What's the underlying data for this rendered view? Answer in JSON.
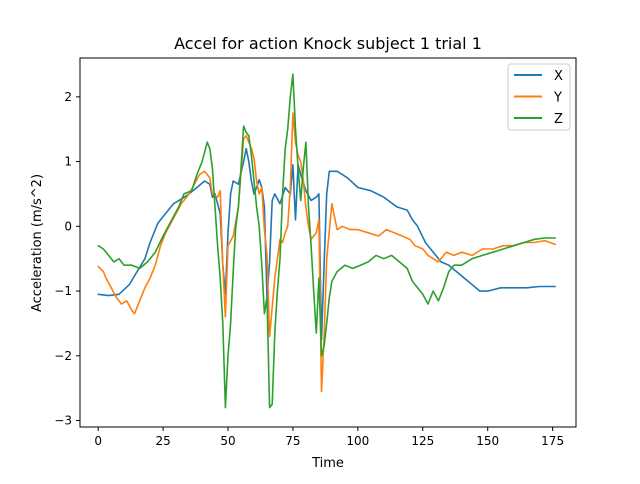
{
  "chart_data": {
    "type": "line",
    "title": "Accel for action Knock subject 1 trial 1",
    "xlabel": "Time",
    "ylabel": "Acceleration (m/s^2)",
    "xlim": [
      -7,
      184
    ],
    "ylim": [
      -3.1,
      2.6
    ],
    "xticks": [
      0,
      25,
      50,
      75,
      100,
      125,
      150,
      175
    ],
    "yticks": [
      -3,
      -2,
      -1,
      0,
      1,
      2
    ],
    "grid": false,
    "legend_position": "upper right",
    "series": [
      {
        "name": "X",
        "color": "#1f77b4",
        "points": [
          [
            0,
            -1.05
          ],
          [
            4,
            -1.07
          ],
          [
            8,
            -1.05
          ],
          [
            12,
            -0.9
          ],
          [
            15,
            -0.7
          ],
          [
            18,
            -0.5
          ],
          [
            20,
            -0.25
          ],
          [
            23,
            0.05
          ],
          [
            26,
            0.2
          ],
          [
            29,
            0.35
          ],
          [
            32,
            0.42
          ],
          [
            35,
            0.5
          ],
          [
            38,
            0.6
          ],
          [
            41,
            0.7
          ],
          [
            43,
            0.65
          ],
          [
            44,
            0.45
          ],
          [
            45,
            0.5
          ],
          [
            46,
            0.35
          ],
          [
            47,
            0.2
          ],
          [
            48,
            -0.6
          ],
          [
            49,
            -1.05
          ],
          [
            50,
            -0.1
          ],
          [
            51,
            0.5
          ],
          [
            52,
            0.7
          ],
          [
            54,
            0.65
          ],
          [
            56,
            1.0
          ],
          [
            57,
            1.2
          ],
          [
            58,
            1.0
          ],
          [
            59,
            0.7
          ],
          [
            60,
            0.5
          ],
          [
            61,
            0.6
          ],
          [
            62,
            0.72
          ],
          [
            63,
            0.6
          ],
          [
            64,
            0.3
          ],
          [
            65,
            -1.1
          ],
          [
            66,
            -0.55
          ],
          [
            67,
            0.4
          ],
          [
            68,
            0.5
          ],
          [
            70,
            0.35
          ],
          [
            72,
            0.6
          ],
          [
            73,
            0.55
          ],
          [
            74,
            0.5
          ],
          [
            75,
            0.95
          ],
          [
            76,
            0.1
          ],
          [
            77,
            0.95
          ],
          [
            78,
            0.8
          ],
          [
            80,
            0.55
          ],
          [
            82,
            0.4
          ],
          [
            84,
            0.45
          ],
          [
            85,
            0.5
          ],
          [
            86,
            -1.75
          ],
          [
            87,
            -0.6
          ],
          [
            88,
            0.5
          ],
          [
            89,
            0.85
          ],
          [
            92,
            0.85
          ],
          [
            96,
            0.75
          ],
          [
            100,
            0.6
          ],
          [
            105,
            0.55
          ],
          [
            110,
            0.45
          ],
          [
            115,
            0.3
          ],
          [
            119,
            0.25
          ],
          [
            121,
            0.1
          ],
          [
            123,
            0.0
          ],
          [
            126,
            -0.25
          ],
          [
            128,
            -0.35
          ],
          [
            130,
            -0.45
          ],
          [
            132,
            -0.55
          ],
          [
            135,
            -0.6
          ],
          [
            138,
            -0.7
          ],
          [
            141,
            -0.8
          ],
          [
            144,
            -0.9
          ],
          [
            147,
            -1.0
          ],
          [
            150,
            -1.0
          ],
          [
            155,
            -0.95
          ],
          [
            160,
            -0.95
          ],
          [
            165,
            -0.95
          ],
          [
            170,
            -0.93
          ],
          [
            176,
            -0.93
          ]
        ]
      },
      {
        "name": "Y",
        "color": "#ff7f0e",
        "points": [
          [
            0,
            -0.62
          ],
          [
            2,
            -0.7
          ],
          [
            3,
            -0.8
          ],
          [
            5,
            -0.95
          ],
          [
            7,
            -1.1
          ],
          [
            9,
            -1.2
          ],
          [
            11,
            -1.15
          ],
          [
            13,
            -1.3
          ],
          [
            14,
            -1.35
          ],
          [
            16,
            -1.15
          ],
          [
            18,
            -0.95
          ],
          [
            20,
            -0.8
          ],
          [
            22,
            -0.6
          ],
          [
            24,
            -0.3
          ],
          [
            26,
            -0.1
          ],
          [
            28,
            0.05
          ],
          [
            30,
            0.2
          ],
          [
            32,
            0.35
          ],
          [
            35,
            0.5
          ],
          [
            37,
            0.65
          ],
          [
            39,
            0.8
          ],
          [
            41,
            0.85
          ],
          [
            43,
            0.75
          ],
          [
            44,
            0.5
          ],
          [
            46,
            0.45
          ],
          [
            47,
            0.55
          ],
          [
            48,
            -0.6
          ],
          [
            49,
            -1.4
          ],
          [
            50,
            -0.3
          ],
          [
            52,
            -0.15
          ],
          [
            54,
            0.3
          ],
          [
            56,
            1.35
          ],
          [
            57,
            1.4
          ],
          [
            59,
            1.2
          ],
          [
            60,
            1.05
          ],
          [
            61,
            0.7
          ],
          [
            62,
            0.5
          ],
          [
            63,
            0.6
          ],
          [
            64,
            -0.05
          ],
          [
            65,
            -0.45
          ],
          [
            66,
            -1.7
          ],
          [
            67,
            -1.25
          ],
          [
            68,
            -0.8
          ],
          [
            69,
            -0.5
          ],
          [
            70,
            -0.2
          ],
          [
            71,
            -0.25
          ],
          [
            72,
            -0.1
          ],
          [
            73,
            0.0
          ],
          [
            74,
            0.6
          ],
          [
            75,
            1.75
          ],
          [
            76,
            1.3
          ],
          [
            77,
            1.1
          ],
          [
            78,
            1.0
          ],
          [
            79,
            0.7
          ],
          [
            80,
            0.3
          ],
          [
            81,
            0.0
          ],
          [
            82,
            -0.2
          ],
          [
            84,
            -0.1
          ],
          [
            85,
            0.1
          ],
          [
            86,
            -2.55
          ],
          [
            87,
            -1.7
          ],
          [
            88,
            -0.5
          ],
          [
            90,
            0.35
          ],
          [
            92,
            -0.05
          ],
          [
            94,
            0.0
          ],
          [
            97,
            -0.05
          ],
          [
            100,
            -0.05
          ],
          [
            104,
            -0.1
          ],
          [
            108,
            -0.15
          ],
          [
            111,
            -0.05
          ],
          [
            114,
            -0.1
          ],
          [
            117,
            -0.15
          ],
          [
            120,
            -0.2
          ],
          [
            122,
            -0.3
          ],
          [
            125,
            -0.35
          ],
          [
            127,
            -0.45
          ],
          [
            129,
            -0.5
          ],
          [
            131,
            -0.55
          ],
          [
            134,
            -0.4
          ],
          [
            137,
            -0.45
          ],
          [
            140,
            -0.4
          ],
          [
            144,
            -0.45
          ],
          [
            148,
            -0.35
          ],
          [
            152,
            -0.35
          ],
          [
            156,
            -0.3
          ],
          [
            160,
            -0.3
          ],
          [
            164,
            -0.25
          ],
          [
            168,
            -0.25
          ],
          [
            172,
            -0.22
          ],
          [
            176,
            -0.28
          ]
        ]
      },
      {
        "name": "Z",
        "color": "#2ca02c",
        "points": [
          [
            0,
            -0.3
          ],
          [
            2,
            -0.35
          ],
          [
            4,
            -0.45
          ],
          [
            6,
            -0.55
          ],
          [
            8,
            -0.5
          ],
          [
            10,
            -0.6
          ],
          [
            13,
            -0.6
          ],
          [
            16,
            -0.65
          ],
          [
            19,
            -0.55
          ],
          [
            22,
            -0.4
          ],
          [
            25,
            -0.15
          ],
          [
            27,
            0.0
          ],
          [
            29,
            0.15
          ],
          [
            31,
            0.3
          ],
          [
            33,
            0.5
          ],
          [
            36,
            0.55
          ],
          [
            38,
            0.8
          ],
          [
            40,
            1.0
          ],
          [
            42,
            1.3
          ],
          [
            43,
            1.2
          ],
          [
            44,
            0.9
          ],
          [
            45,
            0.3
          ],
          [
            46,
            -0.3
          ],
          [
            47,
            -0.8
          ],
          [
            48,
            -1.5
          ],
          [
            49,
            -2.8
          ],
          [
            50,
            -2.0
          ],
          [
            51,
            -1.5
          ],
          [
            52,
            -0.7
          ],
          [
            53,
            0.0
          ],
          [
            54,
            0.3
          ],
          [
            55,
            0.9
          ],
          [
            56,
            1.55
          ],
          [
            57,
            1.45
          ],
          [
            58,
            1.4
          ],
          [
            59,
            1.1
          ],
          [
            60,
            0.7
          ],
          [
            61,
            0.3
          ],
          [
            62,
            0.0
          ],
          [
            63,
            -0.6
          ],
          [
            64,
            -1.35
          ],
          [
            65,
            -1.1
          ],
          [
            66,
            -2.8
          ],
          [
            67,
            -2.75
          ],
          [
            68,
            -1.65
          ],
          [
            69,
            -1.0
          ],
          [
            70,
            -0.5
          ],
          [
            71,
            0.5
          ],
          [
            72,
            1.2
          ],
          [
            73,
            1.5
          ],
          [
            74,
            2.0
          ],
          [
            75,
            2.35
          ],
          [
            76,
            1.5
          ],
          [
            77,
            0.9
          ],
          [
            78,
            0.4
          ],
          [
            79,
            0.9
          ],
          [
            80,
            1.3
          ],
          [
            81,
            0.3
          ],
          [
            82,
            -0.3
          ],
          [
            83,
            -1.0
          ],
          [
            84,
            -1.65
          ],
          [
            85,
            -0.8
          ],
          [
            86,
            -2.0
          ],
          [
            87,
            -1.85
          ],
          [
            88,
            -1.5
          ],
          [
            89,
            -1.1
          ],
          [
            90,
            -0.85
          ],
          [
            92,
            -0.7
          ],
          [
            95,
            -0.6
          ],
          [
            98,
            -0.65
          ],
          [
            101,
            -0.6
          ],
          [
            104,
            -0.55
          ],
          [
            107,
            -0.45
          ],
          [
            110,
            -0.5
          ],
          [
            113,
            -0.45
          ],
          [
            116,
            -0.55
          ],
          [
            119,
            -0.65
          ],
          [
            121,
            -0.85
          ],
          [
            123,
            -0.95
          ],
          [
            125,
            -1.05
          ],
          [
            127,
            -1.2
          ],
          [
            129,
            -1.0
          ],
          [
            131,
            -1.15
          ],
          [
            133,
            -0.95
          ],
          [
            135,
            -0.7
          ],
          [
            137,
            -0.6
          ],
          [
            140,
            -0.6
          ],
          [
            144,
            -0.5
          ],
          [
            148,
            -0.45
          ],
          [
            152,
            -0.4
          ],
          [
            156,
            -0.35
          ],
          [
            160,
            -0.3
          ],
          [
            164,
            -0.25
          ],
          [
            168,
            -0.2
          ],
          [
            172,
            -0.18
          ],
          [
            176,
            -0.18
          ]
        ]
      }
    ]
  }
}
